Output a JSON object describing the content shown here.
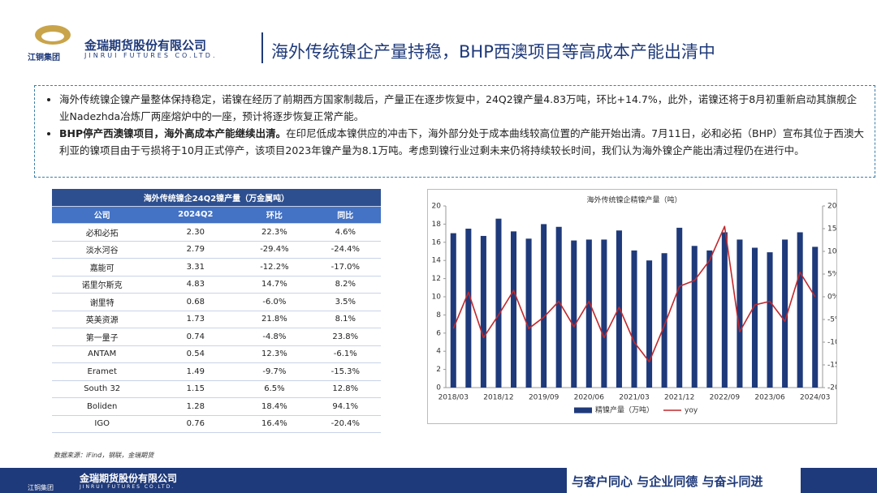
{
  "header": {
    "group": "江铜集团",
    "company": "金瑞期货股份有限公司",
    "company_en": "JINRUI FUTURES CO.LTD.",
    "title": "海外传统镍企产量持稳，BHP西澳项目等高成本产能出清中"
  },
  "bullets": [
    {
      "text": "海外传统镍企镍产量整体保持稳定，诺镍在经历了前期西方国家制裁后，产量正在逐步恢复中，24Q2镍产量4.83万吨，环比+14.7%，此外，诺镍还将于8月初重新启动其旗舰企业Nadezhda冶炼厂两座熔炉中的一座，预计将逐步恢复正常产能。"
    },
    {
      "bold": "BHP停产西澳镍项目，海外高成本产能继续出清。",
      "text": "在印尼低成本镍供应的冲击下，海外部分处于成本曲线较高位置的产能开始出清。7月11日，必和必拓（BHP）宣布其位于西澳大利亚的镍项目由于亏损将于10月正式停产，该项目2023年镍产量为8.1万吨。考虑到镍行业过剩未来仍将持续较长时间，我们认为海外镍企产能出清过程仍在进行中。"
    }
  ],
  "table": {
    "title": "海外传统镍企24Q2镍产量（万金属吨）",
    "header": [
      "公司",
      "2024Q2",
      "环比",
      "同比"
    ],
    "rows": [
      [
        "必和必拓",
        "2.30",
        "22.3%",
        "4.6%"
      ],
      [
        "淡水河谷",
        "2.79",
        "-29.4%",
        "-24.4%"
      ],
      [
        "嘉能可",
        "3.31",
        "-12.2%",
        "-17.0%"
      ],
      [
        "诺里尔斯克",
        "4.83",
        "14.7%",
        "8.2%"
      ],
      [
        "谢里特",
        "0.68",
        "-6.0%",
        "3.5%"
      ],
      [
        "英美资源",
        "1.73",
        "21.8%",
        "8.1%"
      ],
      [
        "第一量子",
        "0.74",
        "-4.8%",
        "23.8%"
      ],
      [
        "ANTAM",
        "0.54",
        "12.3%",
        "-6.1%"
      ],
      [
        "Eramet",
        "1.49",
        "-9.7%",
        "-15.3%"
      ],
      [
        "South 32",
        "1.15",
        "6.5%",
        "12.8%"
      ],
      [
        "Boliden",
        "1.28",
        "18.4%",
        "94.1%"
      ],
      [
        "IGO",
        "0.76",
        "16.4%",
        "-20.4%"
      ]
    ]
  },
  "chart_data": {
    "type": "bar-line",
    "title": "海外传统镍企精镍产量（吨）",
    "categories": [
      "2018/03",
      null,
      null,
      "2018/12",
      null,
      null,
      "2019/09",
      null,
      null,
      "2020/06",
      null,
      null,
      "2021/03",
      null,
      null,
      "2021/12",
      null,
      null,
      "2022/09",
      null,
      null,
      "2023/06",
      null,
      null,
      "2024/03"
    ],
    "series": [
      {
        "name": "精镍产量（万吨）",
        "color": "#1f3a7a",
        "values": [
          17.0,
          17.5,
          16.7,
          18.6,
          17.2,
          16.4,
          18.0,
          17.7,
          16.2,
          16.3,
          16.3,
          17.3,
          15.1,
          14.0,
          14.8,
          17.6,
          15.6,
          15.1,
          17.1,
          16.3,
          15.4,
          14.9,
          16.3,
          17.1,
          15.5
        ]
      },
      {
        "name": "yoy",
        "color": "#c0282d",
        "axis": "y2",
        "values": [
          -7,
          1,
          -9,
          -4,
          1.4,
          -7,
          -4.5,
          -1,
          -6.6,
          -1,
          -9,
          -2.3,
          -10,
          -14.3,
          -6.3,
          2.3,
          3.6,
          8,
          15.5,
          -7.7,
          -1.8,
          -1,
          -5.4,
          5.4,
          0
        ]
      }
    ],
    "ylim": [
      0,
      20
    ],
    "yticks": [
      0,
      2,
      4,
      6,
      8,
      10,
      12,
      14,
      16,
      18,
      20
    ],
    "y2lim": [
      -20,
      20
    ],
    "y2ticks": [
      {
        "value": -20,
        "label": "-20%"
      },
      {
        "value": -15,
        "label": "-15%"
      },
      {
        "value": -10,
        "label": "-10%"
      },
      {
        "value": -5,
        "label": "-5%"
      },
      {
        "value": 0,
        "label": "0%"
      },
      {
        "value": 5,
        "label": "5%"
      },
      {
        "value": 10,
        "label": "10%"
      },
      {
        "value": 15,
        "label": "15%"
      },
      {
        "value": 20,
        "label": "20%"
      }
    ],
    "legend": "bottom"
  },
  "source": "数据来源：iFind，钢联，金瑞期货",
  "footer": {
    "company": "金瑞期货股份有限公司",
    "company_en": "JINRUI FUTURES CO.LTD.",
    "group": "江铜集团",
    "slogan": "与客户同心 与企业同德 与奋斗同进"
  }
}
